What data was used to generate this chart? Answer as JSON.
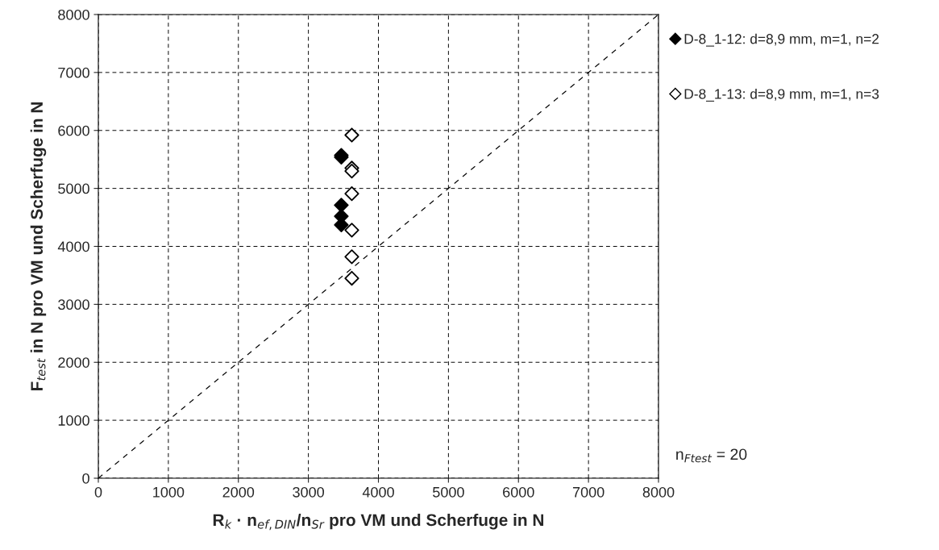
{
  "chart_data": {
    "type": "scatter",
    "xlabel": "R$_{k}$ · n$_{ef,DIN}$/n$_{Sr}$ pro VM und Scherfuge in N",
    "ylabel": "F$_{test}$ in N pro VM und Scherfuge in N",
    "series": [
      {
        "name": "D-8_1-12: d=8,9 mm, m=1, n=2",
        "color": "#000000",
        "x": [
          3470,
          3470,
          3470,
          3470,
          3470
        ],
        "values": [
          5570,
          5540,
          4710,
          4520,
          4370
        ]
      },
      {
        "name": "D-8_1-13: d=8,9 mm, m=1, n=3",
        "color": "#ffffff",
        "x": [
          3620,
          3620,
          3620,
          3620,
          3620,
          3620,
          3620
        ],
        "values": [
          5920,
          5350,
          5300,
          4910,
          4280,
          3820,
          3450
        ]
      },
      {
        "type": "line",
        "color": "#000000",
        "line_style": "dashed",
        "marker": "none",
        "x": [
          0,
          8000
        ],
        "values": [
          0,
          8000
        ]
      }
    ],
    "marker": "diamond",
    "xlim": [
      0,
      8000
    ],
    "ylim": [
      0,
      8000
    ],
    "xticks": [
      0,
      1000,
      2000,
      3000,
      4000,
      5000,
      6000,
      7000,
      8000
    ],
    "yticks": [
      0,
      1000,
      2000,
      3000,
      4000,
      5000,
      6000,
      7000,
      8000
    ],
    "grid": true,
    "legend": "top right",
    "annotations": [
      "n$_{Ftest}$ = 20"
    ]
  }
}
